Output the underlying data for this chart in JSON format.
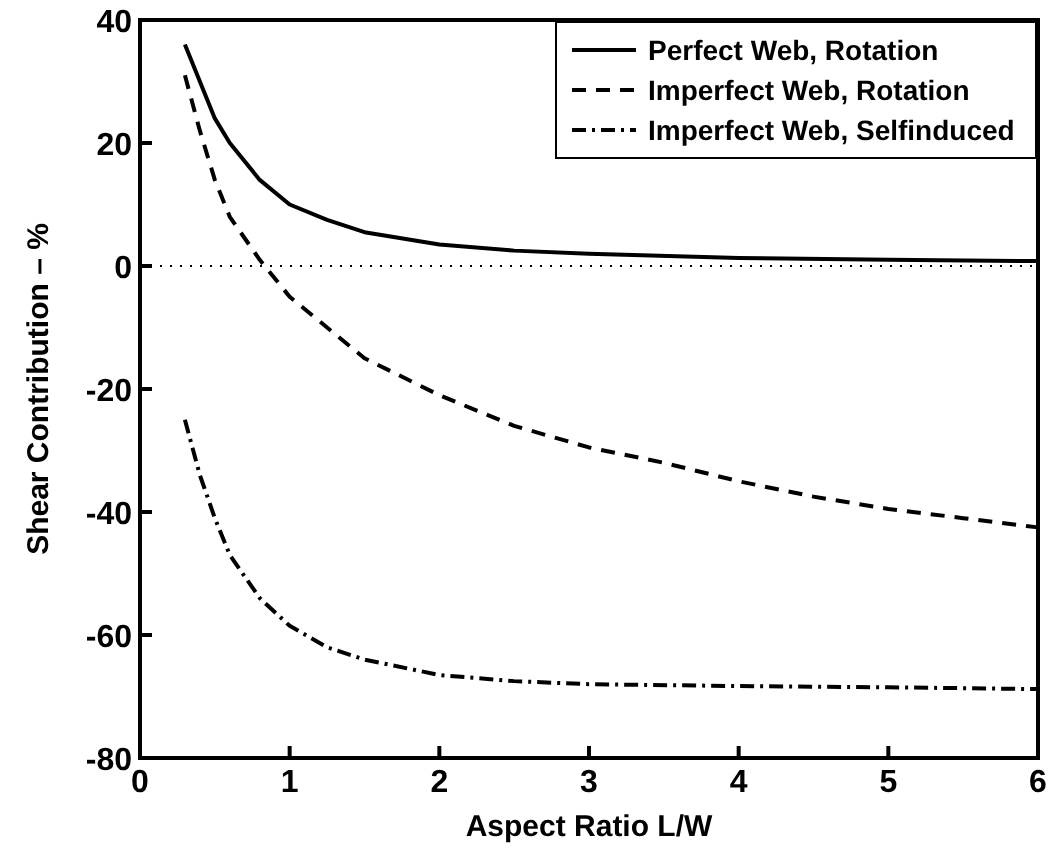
{
  "chart_data": {
    "type": "line",
    "xlabel": "Aspect Ratio L/W",
    "ylabel": "Shear Contribution – %",
    "xlim": [
      0,
      6
    ],
    "ylim": [
      -80,
      40
    ],
    "xticks": [
      0,
      1,
      2,
      3,
      4,
      5,
      6
    ],
    "yticks": [
      -80,
      -60,
      -40,
      -20,
      0,
      20,
      40
    ],
    "grid": false,
    "legend": "top right",
    "ref_lines": [
      {
        "axis": "y",
        "value": 0,
        "color": "#000000",
        "line_style": "dotted"
      }
    ],
    "series": [
      {
        "name": "Perfect Web, Rotation",
        "color": "#000000",
        "line_style": "solid",
        "x": [
          0.3,
          0.4,
          0.5,
          0.6,
          0.8,
          1,
          1.25,
          1.5,
          2,
          2.5,
          3,
          4,
          5,
          6
        ],
        "values": [
          36,
          30,
          24,
          20,
          14,
          10,
          7.5,
          5.5,
          3.5,
          2.5,
          2,
          1.3,
          1,
          0.8
        ]
      },
      {
        "name": "Imperfect Web, Rotation",
        "color": "#000000",
        "line_style": "dashed",
        "x": [
          0.3,
          0.4,
          0.5,
          0.6,
          0.8,
          1,
          1.25,
          1.5,
          2,
          2.5,
          3,
          3.5,
          4,
          4.5,
          5,
          5.5,
          6
        ],
        "values": [
          31,
          22,
          14,
          8,
          1,
          -5,
          -10,
          -15,
          -21,
          -26,
          -29.5,
          -32,
          -35,
          -37.5,
          -39.5,
          -41,
          -42.5
        ]
      },
      {
        "name": "Imperfect Web, Selfinduced",
        "color": "#000000",
        "line_style": "dashdot",
        "x": [
          0.3,
          0.4,
          0.5,
          0.6,
          0.8,
          1,
          1.25,
          1.5,
          2,
          2.5,
          3,
          4,
          5,
          6
        ],
        "values": [
          -25,
          -34,
          -41,
          -47,
          -54,
          -58.5,
          -62,
          -64,
          -66.5,
          -67.5,
          -68,
          -68.3,
          -68.5,
          -68.8
        ]
      }
    ]
  }
}
